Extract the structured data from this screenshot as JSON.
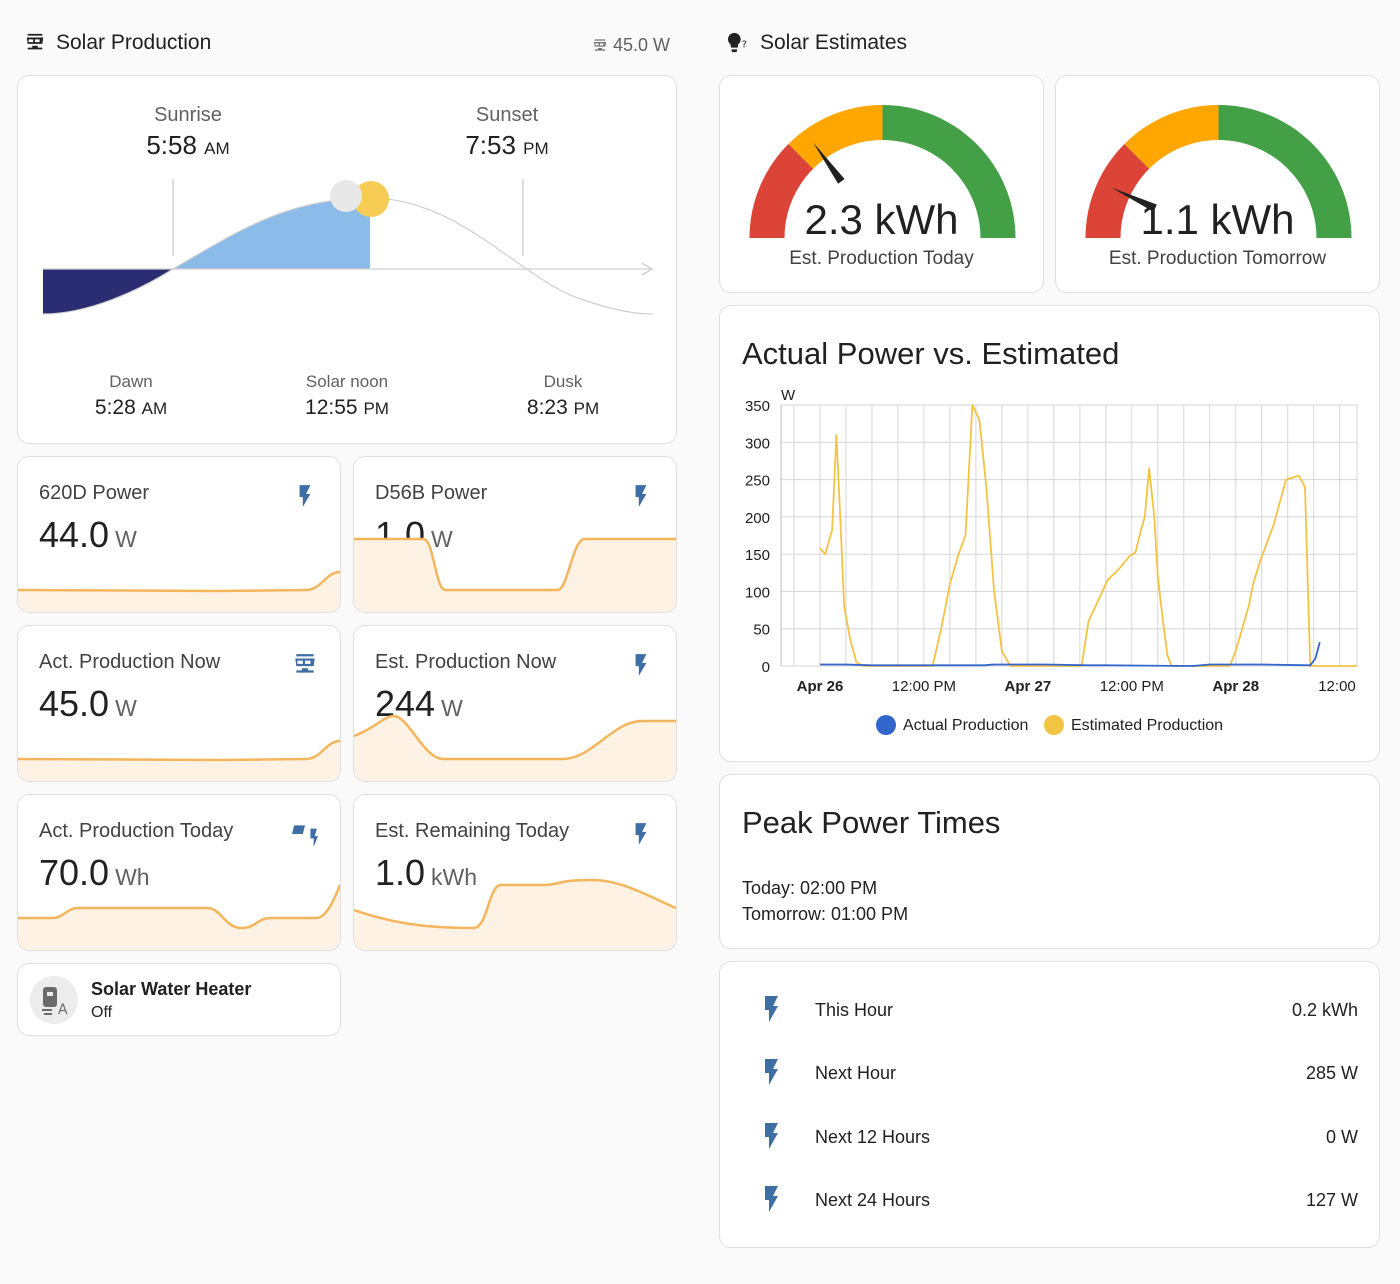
{
  "solar_production": {
    "title": "Solar Production",
    "header_value": "45.0 W",
    "sunrise_label": "Sunrise",
    "sunrise_time": "5:58",
    "sunrise_ampm": "AM",
    "sunset_label": "Sunset",
    "sunset_time": "7:53",
    "sunset_ampm": "PM",
    "dawn_label": "Dawn",
    "dawn_time": "5:28",
    "dawn_ampm": "AM",
    "noon_label": "Solar noon",
    "noon_time": "12:55",
    "noon_ampm": "PM",
    "dusk_label": "Dusk",
    "dusk_time": "8:23",
    "dusk_ampm": "PM"
  },
  "tiles": [
    {
      "name": "620D Power",
      "value": "44.0",
      "unit": "W",
      "icon": "flash-icon"
    },
    {
      "name": "D56B Power",
      "value": "1.0",
      "unit": "W",
      "icon": "flash-icon"
    },
    {
      "name": "Act. Production Now",
      "value": "45.0",
      "unit": "W",
      "icon": "solar-panel-icon"
    },
    {
      "name": "Est. Production Now",
      "value": "244",
      "unit": "W",
      "icon": "flash-icon"
    },
    {
      "name": "Act. Production Today",
      "value": "70.0",
      "unit": "Wh",
      "icon": "solar-power-variant-icon"
    },
    {
      "name": "Est. Remaining Today",
      "value": "1.0",
      "unit": "kWh",
      "icon": "flash-icon"
    }
  ],
  "heater": {
    "name": "Solar Water Heater",
    "state": "Off",
    "icon": "water-heater-icon"
  },
  "solar_estimates": {
    "title": "Solar Estimates",
    "gauge_today": {
      "value": "2.3 kWh",
      "label": "Est. Production Today",
      "level": 0.3
    },
    "gauge_tomorrow": {
      "value": "1.1 kWh",
      "label": "Est. Production Tomorrow",
      "level": 0.14
    }
  },
  "colors": {
    "red": "#db4437",
    "orange": "#ffa600",
    "green": "#43a047",
    "accent": "#3f6ea5",
    "spark": "#f3b65c",
    "estimated": "#f3c343",
    "actual": "#3366cc"
  },
  "chart_title": "Actual Power vs. Estimated",
  "chart_data": {
    "type": "line",
    "title": "Actual Power vs. Estimated",
    "ylabel": "W",
    "ylim": [
      0,
      350
    ],
    "yticks": [
      "350",
      "300",
      "250",
      "200",
      "150",
      "100",
      "50",
      "0"
    ],
    "xtick_labels": [
      {
        "label": "Apr 26",
        "hour": 24,
        "bold": true
      },
      {
        "label": "12:00 PM",
        "hour": 36,
        "bold": false
      },
      {
        "label": "Apr 27",
        "hour": 48,
        "bold": true
      },
      {
        "label": "12:00 PM",
        "hour": 60,
        "bold": false
      },
      {
        "label": "Apr 28",
        "hour": 72,
        "bold": true
      },
      {
        "label": "12:00",
        "hour": 84,
        "bold": false
      }
    ],
    "series": [
      {
        "name": "Actual Production",
        "x": [
          24.0,
          27.0,
          30.0,
          32.0,
          43.0,
          44.0,
          50.0,
          55.0,
          57.0,
          67.0,
          69.0,
          75.0,
          80.6,
          81.2,
          81.7
        ],
        "y": [
          2,
          2,
          1,
          1,
          1,
          2,
          2,
          1,
          1,
          0,
          2,
          2,
          1,
          10,
          32
        ]
      },
      {
        "name": "Estimated Production",
        "x": [
          24.0,
          24.6,
          25.4,
          25.9,
          26.3,
          26.8,
          27.5,
          28.2,
          29.0,
          30.0,
          31.0,
          32.0,
          33.5,
          35.0,
          37.0,
          38.0,
          39.0,
          40.0,
          40.8,
          41.6,
          42.4,
          43.2,
          44.1,
          45.0,
          46.0,
          47.0,
          48.0,
          49.0,
          52.0,
          54.2,
          55.0,
          56.0,
          57.2,
          58.5,
          59.8,
          60.4,
          61.0,
          61.5,
          62.0,
          62.6,
          63.0,
          63.6,
          64.1,
          64.6,
          65.0,
          66.0,
          67.0,
          69.0,
          70.0,
          71.3,
          72.0,
          73.5,
          74.0,
          74.8,
          76.4,
          77.8,
          79.3,
          80.0,
          80.6,
          81.2,
          82.5,
          83.0,
          84.0,
          85.0,
          85.7,
          86.0
        ],
        "y": [
          158,
          150,
          182,
          310,
          210,
          80,
          35,
          5,
          0,
          0,
          0,
          0,
          0,
          0,
          0,
          50,
          110,
          150,
          175,
          350,
          330,
          240,
          100,
          20,
          0,
          0,
          0,
          0,
          0,
          0,
          60,
          85,
          115,
          130,
          148,
          152,
          180,
          200,
          265,
          200,
          120,
          60,
          15,
          0,
          0,
          0,
          0,
          0,
          0,
          0,
          20,
          80,
          110,
          140,
          190,
          250,
          255,
          240,
          0,
          0,
          0,
          0,
          0,
          0,
          0,
          0
        ]
      }
    ],
    "legend": "bottom"
  },
  "peak": {
    "title": "Peak Power Times",
    "today": "Today: 02:00 PM",
    "tomorrow": "Tomorrow: 01:00 PM"
  },
  "forecast_rows": [
    {
      "label": "This Hour",
      "value": "0.2 kWh",
      "icon": "flash-icon"
    },
    {
      "label": "Next Hour",
      "value": "285 W",
      "icon": "flash-icon"
    },
    {
      "label": "Next 12 Hours",
      "value": "0 W",
      "icon": "flash-icon"
    },
    {
      "label": "Next 24 Hours",
      "value": "127 W",
      "icon": "flash-icon"
    }
  ]
}
